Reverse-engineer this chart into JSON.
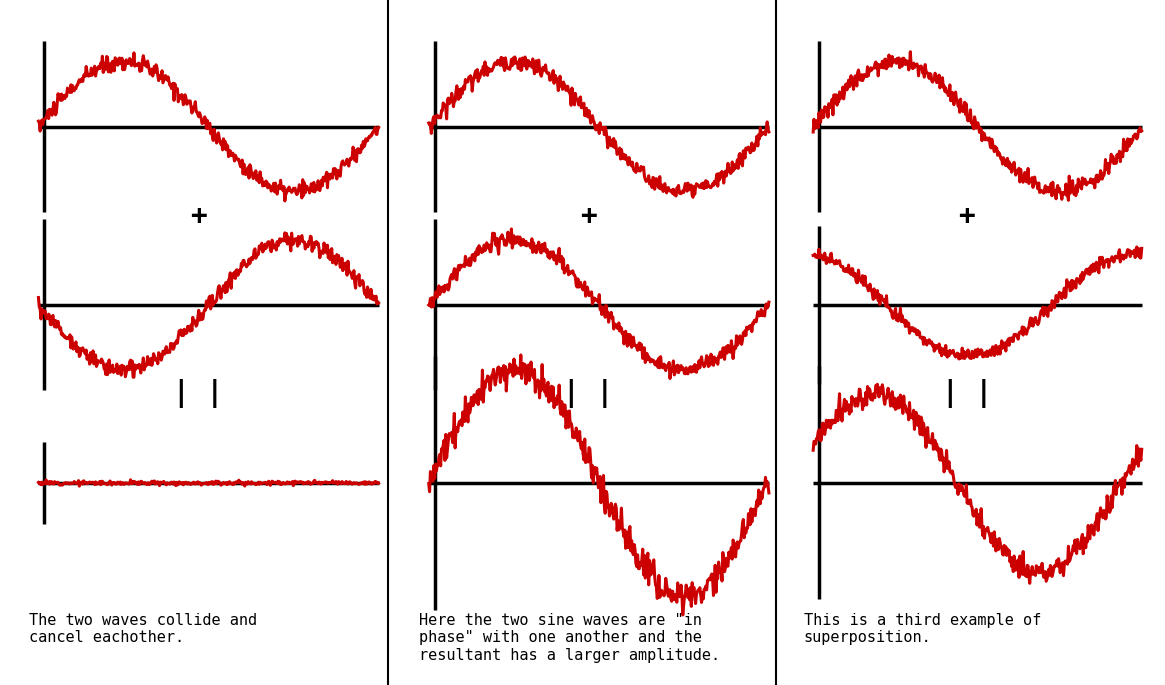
{
  "bg_color": "#ffffff",
  "wave_color": "#cc0000",
  "axis_color": "#000000",
  "divider_color": "#000000",
  "text_color": "#000000",
  "col1_caption": "The two waves collide and\ncancel eachother.",
  "col2_caption": "Here the two sine waves are \"in\nphase\" with one another and the\nresultant has a larger amplitude.",
  "col3_caption": "This is a third example of\nsuperposition.",
  "caption_fontsize": 11,
  "caption_font": "monospace",
  "col_dividers": [
    0.333,
    0.666
  ],
  "operator_fontsize": 20,
  "operator_font": "monospace",
  "wave_lw": 2.2,
  "axis_lw": 2.5,
  "noise_amplitude": 0.008
}
